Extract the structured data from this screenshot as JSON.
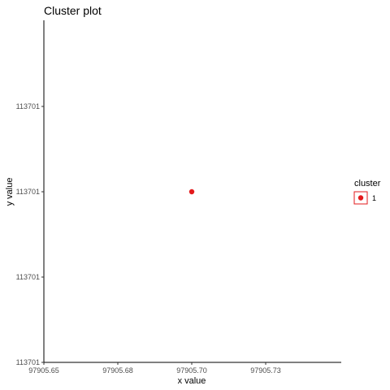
{
  "chart_data": {
    "type": "scatter",
    "title": "Cluster plot",
    "xlabel": "x value",
    "ylabel": "y value",
    "x_ticks": [
      "97905.65",
      "97905.68",
      "97905.70",
      "97905.73"
    ],
    "y_ticks": [
      "113701",
      "113701",
      "113701",
      "113701",
      "113701"
    ],
    "series": [
      {
        "name": "1",
        "color": "#e31a1c",
        "points": [
          {
            "x": 97905.7,
            "y": 113701
          }
        ]
      }
    ],
    "legend": {
      "title": "cluster",
      "placement": "right",
      "entries": [
        {
          "label": "1",
          "color": "#e31a1c"
        }
      ]
    },
    "grid": false
  }
}
